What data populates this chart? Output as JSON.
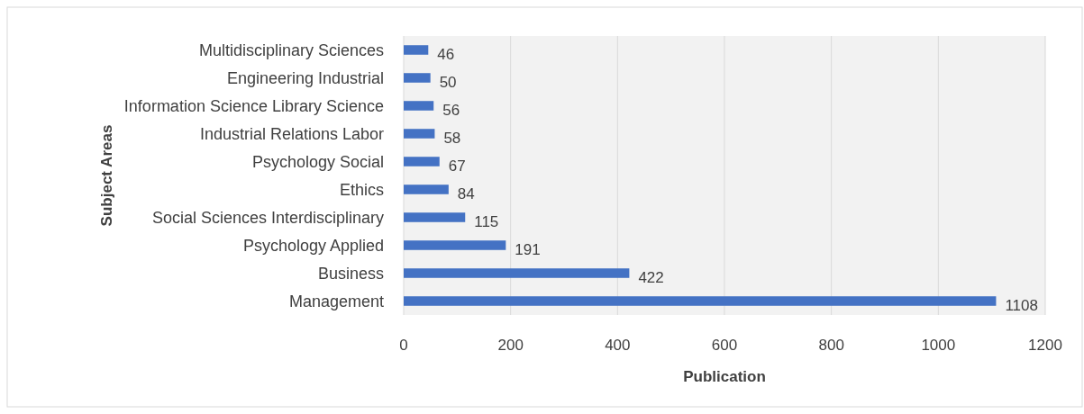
{
  "chart_data": {
    "type": "bar",
    "orientation": "horizontal",
    "xlabel": "Publication",
    "ylabel": "Subject Areas",
    "categories": [
      "Multidisciplinary Sciences",
      "Engineering Industrial",
      "Information Science Library Science",
      "Industrial Relations Labor",
      "Psychology Social",
      "Ethics",
      "Social Sciences Interdisciplinary",
      "Psychology Applied",
      "Business",
      "Management"
    ],
    "values": [
      46,
      50,
      56,
      58,
      67,
      84,
      115,
      191,
      422,
      1108
    ],
    "color": "#4472c4",
    "xlim": [
      0,
      1200
    ],
    "xticks": [
      0,
      200,
      400,
      600,
      800,
      1000,
      1200
    ],
    "grid": "x",
    "data_labels": true
  }
}
